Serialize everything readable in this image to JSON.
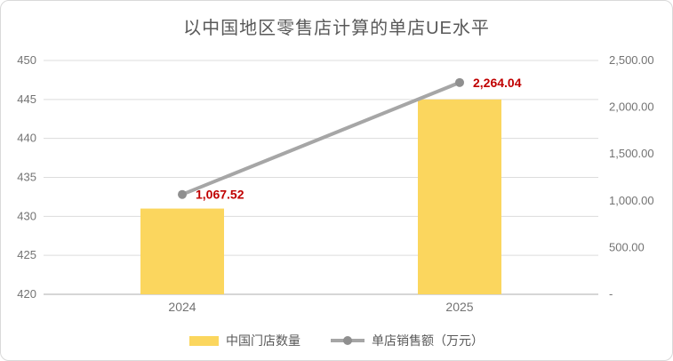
{
  "chart_data": {
    "type": "bar+line combo",
    "title": "以中国地区零售店计算的单店UE水平",
    "categories": [
      "2024",
      "2025"
    ],
    "series": [
      {
        "name": "中国门店数量",
        "type": "bar",
        "axis": "left",
        "values": [
          431,
          445
        ],
        "color": "#FBD65E"
      },
      {
        "name": "单店销售额（万元）",
        "type": "line",
        "axis": "right",
        "values": [
          1067.52,
          2264.04
        ],
        "labels": [
          "1,067.52",
          "2,264.04"
        ],
        "color": "#A6A6A6",
        "marker_color": "#8F8F8F",
        "label_color": "#C00000"
      }
    ],
    "left_axis": {
      "min": 420,
      "max": 450,
      "step": 5,
      "tick_labels": [
        "420",
        "425",
        "430",
        "435",
        "440",
        "445",
        "450"
      ]
    },
    "right_axis": {
      "min": 0,
      "max": 2500,
      "step": 500,
      "tick_labels": [
        "-",
        "500.00",
        "1,000.00",
        "1,500.00",
        "2,000.00",
        "2,500.00"
      ]
    },
    "grid": "horizontal",
    "legend_position": "bottom",
    "colors": {
      "gridline": "#DCDCDC",
      "axis_line": "#C9C9C9",
      "axis_text": "#737373",
      "title_text": "#595959"
    }
  }
}
